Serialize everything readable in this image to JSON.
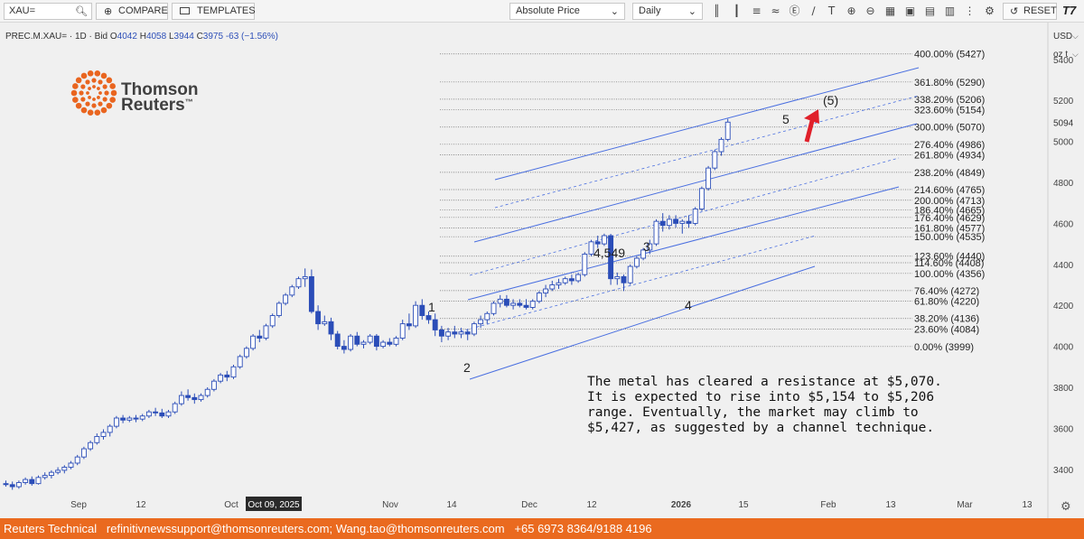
{
  "toolbar": {
    "symbol_value": "XAU=",
    "compare_label": "COMPARE",
    "templates_label": "TEMPLATES",
    "price_mode": "Absolute Price",
    "interval": "Daily",
    "reset_label": "RESET",
    "logo_text": "T7"
  },
  "chart_header": {
    "instrument": "PREC.M.XAU=",
    "interval": "1D",
    "side": "Bid",
    "o_label": "O",
    "o_value": "4042",
    "h_label": "H",
    "h_value": "4058",
    "l_label": "L",
    "l_value": "3944",
    "c_label": "C",
    "c_value": "3975",
    "change": "-63 (−1.56%)"
  },
  "axis_panel": {
    "currency": "USD",
    "unit": "oz t"
  },
  "brand": {
    "line1": "Thomson",
    "line2": "Reuters",
    "tm": "™",
    "color": "#e9651f"
  },
  "commentary": {
    "line1": "The metal has cleared a resistance at $5,070.",
    "line2": "It is expected to rise into $5,154 to $5,206",
    "line3": "range. Eventually, the market may climb to",
    "line4": "$5,427, as suggested by a channel technique."
  },
  "footer": {
    "text": "Reuters Technical   refinitivnewssupport@thomsonreuters.com; Wang.tao@thomsonreuters.com   +65 6973 8364/9188 4196"
  },
  "chart_data": {
    "type": "candlestick",
    "ylim": [
      3280,
      5580
    ],
    "y_ticks": [
      3400,
      3600,
      3800,
      4000,
      4200,
      4400,
      4600,
      4800,
      5000,
      5200,
      5400
    ],
    "last_price_label": "5094",
    "x_ticks": [
      "Sep",
      "12",
      "Oct",
      "Oct 09, 2025",
      "Nov",
      "14",
      "Dec",
      "12",
      "2026",
      "15",
      "Feb",
      "13",
      "Mar",
      "13"
    ],
    "highlighted_x_tick": "Oct 09, 2025",
    "fib_levels": [
      {
        "label": "400.00% (5427)",
        "value": 5427
      },
      {
        "label": "361.80% (5290)",
        "value": 5290
      },
      {
        "label": "338.20% (5206)",
        "value": 5206
      },
      {
        "label": "323.60% (5154)",
        "value": 5154
      },
      {
        "label": "300.00% (5070)",
        "value": 5070
      },
      {
        "label": "276.40% (4986)",
        "value": 4986
      },
      {
        "label": "261.80% (4934)",
        "value": 4934
      },
      {
        "label": "238.20% (4849)",
        "value": 4849
      },
      {
        "label": "214.60% (4765)",
        "value": 4765
      },
      {
        "label": "200.00% (4713)",
        "value": 4713
      },
      {
        "label": "186.40% (4665)",
        "value": 4665
      },
      {
        "label": "176.40% (4629)",
        "value": 4629
      },
      {
        "label": "161.80% (4577)",
        "value": 4577
      },
      {
        "label": "150.00% (4535)",
        "value": 4535
      },
      {
        "label": "123.60% (4440)",
        "value": 4440
      },
      {
        "label": "114.60% (4408)",
        "value": 4408
      },
      {
        "label": "100.00% (4356)",
        "value": 4356
      },
      {
        "label": "76.40% (4272)",
        "value": 4272
      },
      {
        "label": "61.80% (4220)",
        "value": 4220
      },
      {
        "label": "38.20% (4136)",
        "value": 4136
      },
      {
        "label": "23.60% (4084)",
        "value": 4084
      },
      {
        "label": "0.00% (3999)",
        "value": 3999
      }
    ],
    "wave_labels": [
      "1",
      "2",
      "3",
      "4",
      "5",
      "(5)"
    ],
    "price_annotation": "4,549",
    "candles": [
      {
        "o": 3330,
        "h": 3345,
        "l": 3315,
        "c": 3325
      },
      {
        "o": 3325,
        "h": 3340,
        "l": 3300,
        "c": 3315
      },
      {
        "o": 3315,
        "h": 3345,
        "l": 3305,
        "c": 3335
      },
      {
        "o": 3335,
        "h": 3360,
        "l": 3325,
        "c": 3350
      },
      {
        "o": 3350,
        "h": 3365,
        "l": 3320,
        "c": 3330
      },
      {
        "o": 3330,
        "h": 3370,
        "l": 3325,
        "c": 3360
      },
      {
        "o": 3360,
        "h": 3385,
        "l": 3350,
        "c": 3370
      },
      {
        "o": 3370,
        "h": 3395,
        "l": 3355,
        "c": 3385
      },
      {
        "o": 3385,
        "h": 3410,
        "l": 3375,
        "c": 3395
      },
      {
        "o": 3395,
        "h": 3420,
        "l": 3380,
        "c": 3410
      },
      {
        "o": 3410,
        "h": 3440,
        "l": 3400,
        "c": 3430
      },
      {
        "o": 3430,
        "h": 3470,
        "l": 3420,
        "c": 3460
      },
      {
        "o": 3460,
        "h": 3510,
        "l": 3450,
        "c": 3500
      },
      {
        "o": 3500,
        "h": 3540,
        "l": 3490,
        "c": 3530
      },
      {
        "o": 3530,
        "h": 3575,
        "l": 3520,
        "c": 3560
      },
      {
        "o": 3560,
        "h": 3595,
        "l": 3545,
        "c": 3580
      },
      {
        "o": 3580,
        "h": 3620,
        "l": 3560,
        "c": 3610
      },
      {
        "o": 3610,
        "h": 3660,
        "l": 3600,
        "c": 3650
      },
      {
        "o": 3650,
        "h": 3665,
        "l": 3625,
        "c": 3640
      },
      {
        "o": 3640,
        "h": 3660,
        "l": 3630,
        "c": 3650
      },
      {
        "o": 3650,
        "h": 3665,
        "l": 3630,
        "c": 3645
      },
      {
        "o": 3645,
        "h": 3670,
        "l": 3635,
        "c": 3660
      },
      {
        "o": 3660,
        "h": 3690,
        "l": 3650,
        "c": 3680
      },
      {
        "o": 3680,
        "h": 3700,
        "l": 3660,
        "c": 3675
      },
      {
        "o": 3675,
        "h": 3695,
        "l": 3650,
        "c": 3660
      },
      {
        "o": 3660,
        "h": 3690,
        "l": 3650,
        "c": 3680
      },
      {
        "o": 3680,
        "h": 3730,
        "l": 3670,
        "c": 3720
      },
      {
        "o": 3720,
        "h": 3780,
        "l": 3710,
        "c": 3760
      },
      {
        "o": 3760,
        "h": 3790,
        "l": 3735,
        "c": 3750
      },
      {
        "o": 3750,
        "h": 3770,
        "l": 3720,
        "c": 3740
      },
      {
        "o": 3740,
        "h": 3770,
        "l": 3730,
        "c": 3760
      },
      {
        "o": 3760,
        "h": 3800,
        "l": 3750,
        "c": 3790
      },
      {
        "o": 3790,
        "h": 3840,
        "l": 3780,
        "c": 3830
      },
      {
        "o": 3830,
        "h": 3870,
        "l": 3820,
        "c": 3860
      },
      {
        "o": 3860,
        "h": 3880,
        "l": 3830,
        "c": 3850
      },
      {
        "o": 3850,
        "h": 3910,
        "l": 3840,
        "c": 3900
      },
      {
        "o": 3900,
        "h": 3960,
        "l": 3890,
        "c": 3950
      },
      {
        "o": 3950,
        "h": 4000,
        "l": 3940,
        "c": 3990
      },
      {
        "o": 3990,
        "h": 4060,
        "l": 3980,
        "c": 4050
      },
      {
        "o": 4050,
        "h": 4080,
        "l": 4020,
        "c": 4040
      },
      {
        "o": 4040,
        "h": 4110,
        "l": 4030,
        "c": 4100
      },
      {
        "o": 4100,
        "h": 4160,
        "l": 4090,
        "c": 4150
      },
      {
        "o": 4150,
        "h": 4220,
        "l": 4140,
        "c": 4210
      },
      {
        "o": 4210,
        "h": 4260,
        "l": 4200,
        "c": 4250
      },
      {
        "o": 4250,
        "h": 4300,
        "l": 4240,
        "c": 4290
      },
      {
        "o": 4290,
        "h": 4340,
        "l": 4280,
        "c": 4330
      },
      {
        "o": 4330,
        "h": 4380,
        "l": 4290,
        "c": 4340
      },
      {
        "o": 4340,
        "h": 4375,
        "l": 4160,
        "c": 4170
      },
      {
        "o": 4170,
        "h": 4200,
        "l": 4080,
        "c": 4110
      },
      {
        "o": 4110,
        "h": 4150,
        "l": 4100,
        "c": 4120
      },
      {
        "o": 4120,
        "h": 4140,
        "l": 4030,
        "c": 4060
      },
      {
        "o": 4060,
        "h": 4075,
        "l": 3985,
        "c": 4000
      },
      {
        "o": 4000,
        "h": 4030,
        "l": 3965,
        "c": 3985
      },
      {
        "o": 3985,
        "h": 4060,
        "l": 3975,
        "c": 4050
      },
      {
        "o": 4050,
        "h": 4070,
        "l": 4000,
        "c": 4010
      },
      {
        "o": 4010,
        "h": 4030,
        "l": 3990,
        "c": 4020
      },
      {
        "o": 4020,
        "h": 4060,
        "l": 4010,
        "c": 4050
      },
      {
        "o": 4050,
        "h": 4060,
        "l": 3980,
        "c": 4000
      },
      {
        "o": 4000,
        "h": 4030,
        "l": 3990,
        "c": 4020
      },
      {
        "o": 4020,
        "h": 4040,
        "l": 4000,
        "c": 4010
      },
      {
        "o": 4010,
        "h": 4050,
        "l": 4000,
        "c": 4040
      },
      {
        "o": 4040,
        "h": 4130,
        "l": 4030,
        "c": 4110
      },
      {
        "o": 4110,
        "h": 4160,
        "l": 4080,
        "c": 4100
      },
      {
        "o": 4100,
        "h": 4220,
        "l": 4090,
        "c": 4200
      },
      {
        "o": 4200,
        "h": 4230,
        "l": 4130,
        "c": 4150
      },
      {
        "o": 4150,
        "h": 4170,
        "l": 4110,
        "c": 4130
      },
      {
        "o": 4130,
        "h": 4160,
        "l": 4050,
        "c": 4080
      },
      {
        "o": 4080,
        "h": 4100,
        "l": 4020,
        "c": 4050
      },
      {
        "o": 4050,
        "h": 4090,
        "l": 4030,
        "c": 4070
      },
      {
        "o": 4070,
        "h": 4100,
        "l": 4040,
        "c": 4060
      },
      {
        "o": 4060,
        "h": 4090,
        "l": 4040,
        "c": 4070
      },
      {
        "o": 4070,
        "h": 4080,
        "l": 4030,
        "c": 4060
      },
      {
        "o": 4060,
        "h": 4120,
        "l": 4050,
        "c": 4110
      },
      {
        "o": 4110,
        "h": 4150,
        "l": 4090,
        "c": 4130
      },
      {
        "o": 4130,
        "h": 4170,
        "l": 4110,
        "c": 4160
      },
      {
        "o": 4160,
        "h": 4220,
        "l": 4150,
        "c": 4210
      },
      {
        "o": 4210,
        "h": 4250,
        "l": 4190,
        "c": 4230
      },
      {
        "o": 4230,
        "h": 4250,
        "l": 4190,
        "c": 4200
      },
      {
        "o": 4200,
        "h": 4230,
        "l": 4180,
        "c": 4210
      },
      {
        "o": 4210,
        "h": 4230,
        "l": 4190,
        "c": 4200
      },
      {
        "o": 4200,
        "h": 4230,
        "l": 4180,
        "c": 4190
      },
      {
        "o": 4190,
        "h": 4230,
        "l": 4180,
        "c": 4220
      },
      {
        "o": 4220,
        "h": 4270,
        "l": 4210,
        "c": 4260
      },
      {
        "o": 4260,
        "h": 4300,
        "l": 4240,
        "c": 4280
      },
      {
        "o": 4280,
        "h": 4320,
        "l": 4270,
        "c": 4300
      },
      {
        "o": 4300,
        "h": 4330,
        "l": 4280,
        "c": 4310
      },
      {
        "o": 4310,
        "h": 4340,
        "l": 4300,
        "c": 4330
      },
      {
        "o": 4330,
        "h": 4350,
        "l": 4300,
        "c": 4320
      },
      {
        "o": 4320,
        "h": 4360,
        "l": 4310,
        "c": 4350
      },
      {
        "o": 4350,
        "h": 4460,
        "l": 4340,
        "c": 4450
      },
      {
        "o": 4450,
        "h": 4520,
        "l": 4440,
        "c": 4510
      },
      {
        "o": 4510,
        "h": 4540,
        "l": 4480,
        "c": 4500
      },
      {
        "o": 4500,
        "h": 4550,
        "l": 4490,
        "c": 4540
      },
      {
        "o": 4540,
        "h": 4549,
        "l": 4300,
        "c": 4330
      },
      {
        "o": 4330,
        "h": 4360,
        "l": 4300,
        "c": 4340
      },
      {
        "o": 4340,
        "h": 4350,
        "l": 4270,
        "c": 4310
      },
      {
        "o": 4310,
        "h": 4400,
        "l": 4300,
        "c": 4390
      },
      {
        "o": 4390,
        "h": 4440,
        "l": 4380,
        "c": 4430
      },
      {
        "o": 4430,
        "h": 4480,
        "l": 4420,
        "c": 4470
      },
      {
        "o": 4470,
        "h": 4520,
        "l": 4450,
        "c": 4500
      },
      {
        "o": 4500,
        "h": 4620,
        "l": 4490,
        "c": 4610
      },
      {
        "o": 4610,
        "h": 4650,
        "l": 4560,
        "c": 4590
      },
      {
        "o": 4590,
        "h": 4640,
        "l": 4570,
        "c": 4620
      },
      {
        "o": 4620,
        "h": 4640,
        "l": 4580,
        "c": 4600
      },
      {
        "o": 4600,
        "h": 4620,
        "l": 4550,
        "c": 4610
      },
      {
        "o": 4610,
        "h": 4640,
        "l": 4580,
        "c": 4600
      },
      {
        "o": 4600,
        "h": 4680,
        "l": 4590,
        "c": 4670
      },
      {
        "o": 4670,
        "h": 4780,
        "l": 4660,
        "c": 4770
      },
      {
        "o": 4770,
        "h": 4880,
        "l": 4760,
        "c": 4870
      },
      {
        "o": 4870,
        "h": 4960,
        "l": 4860,
        "c": 4950
      },
      {
        "o": 4950,
        "h": 5020,
        "l": 4930,
        "c": 5010
      },
      {
        "o": 5010,
        "h": 5110,
        "l": 5000,
        "c": 5094
      }
    ]
  }
}
